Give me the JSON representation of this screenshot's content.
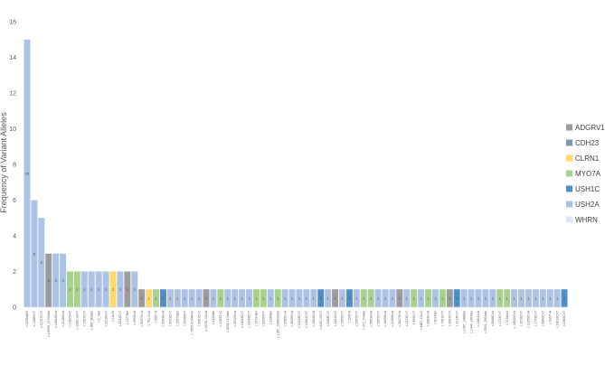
{
  "chart_data": {
    "type": "bar",
    "ylabel": "Frequency of Variant Alleles",
    "ylim": [
      0,
      16
    ],
    "yticks": [
      0,
      2,
      4,
      6,
      8,
      10,
      12,
      14,
      16
    ],
    "grid": false,
    "legend_position": "right",
    "legend": [
      {
        "name": "ADGRV1",
        "color": "#9c9c9c"
      },
      {
        "name": "CDH23",
        "color": "#7d95b5"
      },
      {
        "name": "CLRN1",
        "color": "#ffd966"
      },
      {
        "name": "MYO7A",
        "color": "#a9d18e"
      },
      {
        "name": "USH1C",
        "color": "#4f8fc9"
      },
      {
        "name": "USH2A",
        "color": "#adc3e6"
      },
      {
        "name": "WHRN",
        "color": "#dee6f3"
      }
    ],
    "categories": [
      "c.2299delG",
      "c.1256G>T",
      "c.12767C>T",
      "c.12695_12700del",
      "c.11864G>A",
      "c.2138G>A",
      "c.1387G>C",
      "c.2283-1G>T",
      "c.1957C>T",
      "c.802_803del",
      "c.5_7del",
      "c.2276G>T",
      "c.1A>G",
      "c.4133C>T",
      "c.1277del",
      "c.650G>A",
      "c.9447G>A",
      "c.791 C>A",
      "c.5557 A",
      "c.9064G>A",
      "c.4072C>T",
      "c.15576del",
      "c.9243A>T",
      "c.7595-2144A>G",
      "c.4957C>T",
      "c.15151-1G>A",
      "c.6123del",
      "c.1283T>C",
      "c.3252-1473del",
      "c.6542G>A",
      "c.14083C>T",
      "c.14248C>T",
      "c.14791del",
      "c.5226G>T",
      "c.2340del",
      "c.1367_1368insCG",
      "c.2085C>A",
      "c.2639G>A",
      "c.13316C>T",
      "c.10561C>T",
      "c.4983G>A",
      "c.4467-1G>T",
      "c.5398C>T",
      "c.4451C>T",
      "c.3905C>T",
      "c.1595 A",
      "c.2997C>T",
      "c.370_374del",
      "c.5963G>A",
      "c.5397C>T",
      "c.1645G>A",
      "c.2156G>A",
      "c.3847G>A",
      "c.1174C>T",
      "c.499C>T",
      "c.6867-1G>C",
      "c.2883C>A",
      "c.5014del",
      "c.7891C>T",
      "c.9007C>T",
      "c.4714C>T",
      "c.1467_1468del",
      "c.1444_1464del",
      "c.1381G>A",
      "c.3501_3504del",
      "c.5668C>A",
      "c.1723C>T",
      "c.319A>G",
      "c.13522G>A",
      "c.2276C>T",
      "c.11955C>A",
      "c.1733C>T",
      "c.8800C>T",
      "c.616T>A",
      "c.13010C>T",
      "c.2365C>T"
    ],
    "series": [
      {
        "values": [
          15,
          6,
          5,
          3,
          3,
          3,
          2,
          2,
          2,
          2,
          2,
          2,
          2,
          2,
          2,
          2,
          1,
          1,
          1,
          1,
          1,
          1,
          1,
          1,
          1,
          1,
          1,
          1,
          1,
          1,
          1,
          1,
          1,
          1,
          1,
          1,
          1,
          1,
          1,
          1,
          1,
          1,
          1,
          1,
          1,
          1,
          1,
          1,
          1,
          1,
          1,
          1,
          1,
          1,
          1,
          1,
          1,
          1,
          1,
          1,
          1,
          1,
          1,
          1,
          1,
          1,
          1,
          1,
          1,
          1,
          1,
          1,
          1,
          1,
          1,
          1
        ]
      }
    ],
    "genes": [
      "USH2A",
      "USH2A",
      "USH2A",
      "ADGRV1",
      "USH2A",
      "USH2A",
      "MYO7A",
      "MYO7A",
      "USH2A",
      "USH2A",
      "USH2A",
      "USH2A",
      "CLRN1",
      "USH2A",
      "ADGRV1",
      "USH2A",
      "ADGRV1",
      "CLRN1",
      "MYO7A",
      "USH1C",
      "USH2A",
      "USH2A",
      "USH2A",
      "USH2A",
      "USH2A",
      "ADGRV1",
      "USH2A",
      "MYO7A",
      "USH2A",
      "USH2A",
      "USH2A",
      "USH2A",
      "MYO7A",
      "MYO7A",
      "USH2A",
      "MYO7A",
      "USH2A",
      "USH2A",
      "USH2A",
      "USH2A",
      "USH2A",
      "USH1C",
      "USH2A",
      "ADGRV1",
      "USH2A",
      "USH1C",
      "USH2A",
      "MYO7A",
      "MYO7A",
      "USH2A",
      "USH2A",
      "USH2A",
      "ADGRV1",
      "USH2A",
      "MYO7A",
      "USH2A",
      "MYO7A",
      "USH2A",
      "MYO7A",
      "ADGRV1",
      "USH1C",
      "USH2A",
      "USH2A",
      "USH2A",
      "USH2A",
      "USH2A",
      "MYO7A",
      "MYO7A",
      "USH2A",
      "USH2A",
      "USH2A",
      "USH2A",
      "USH2A",
      "USH2A",
      "USH2A",
      "USH1C"
    ]
  }
}
